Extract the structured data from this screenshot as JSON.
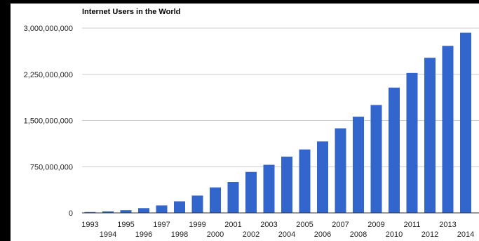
{
  "chart_data": {
    "type": "bar",
    "title": "Internet Users in the World",
    "xlabel": "",
    "ylabel": "",
    "categories": [
      "1993",
      "1994",
      "1995",
      "1996",
      "1997",
      "1998",
      "1999",
      "2000",
      "2001",
      "2002",
      "2003",
      "2004",
      "2005",
      "2006",
      "2007",
      "2008",
      "2009",
      "2010",
      "2011",
      "2012",
      "2013",
      "2014"
    ],
    "values": [
      14000000,
      25000000,
      44000000,
      77000000,
      121000000,
      188000000,
      281000000,
      414000000,
      502000000,
      665000000,
      781000000,
      914000000,
      1030000000,
      1160000000,
      1373000000,
      1562000000,
      1752000000,
      2034000000,
      2272000000,
      2518000000,
      2712000000,
      2925000000
    ],
    "ylim": [
      0,
      3000000000
    ],
    "yticks": [
      0,
      750000000,
      1500000000,
      2250000000,
      3000000000
    ],
    "ytick_labels": [
      "0",
      "750,000,000",
      "1,500,000,000",
      "2,250,000,000",
      "3,000,000,000"
    ],
    "grid": true,
    "legend": "none",
    "colors": {
      "bar": "#3366cc",
      "grid": "#cccccc",
      "baseline": "#333333",
      "background": "#ffffff",
      "frame": "#000000"
    }
  }
}
